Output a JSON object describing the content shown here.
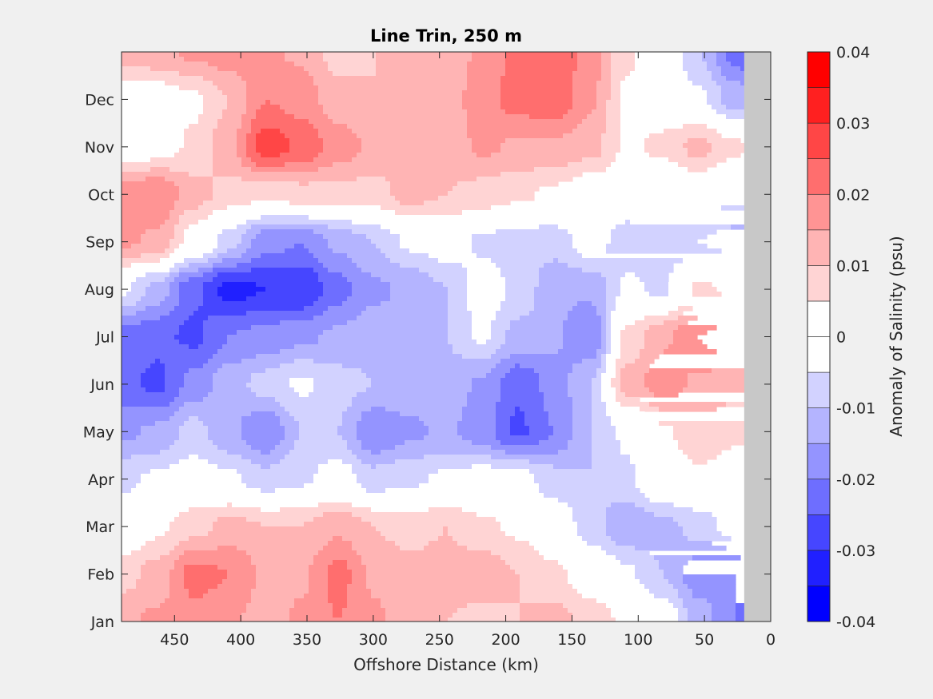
{
  "chart_data": {
    "type": "heatmap",
    "subtype": "filled-contour",
    "title": "Line Trin, 250 m",
    "xlabel": "Offshore Distance (km)",
    "ylabel": "",
    "colorbar_label": "Anomaly of Salinity (psu)",
    "xlim": [
      490,
      0
    ],
    "x_reversed": true,
    "x_ticks": [
      450,
      400,
      350,
      300,
      250,
      200,
      150,
      100,
      50,
      0
    ],
    "y_ticks": [
      "Jan",
      "Feb",
      "Mar",
      "Apr",
      "May",
      "Jun",
      "Jul",
      "Aug",
      "Sep",
      "Oct",
      "Nov",
      "Dec"
    ],
    "clim": [
      -0.04,
      0.04
    ],
    "contour_interval": 0.005,
    "colorbar_ticks": [
      "0.04",
      "0.03",
      "0.02",
      "0.01",
      "0",
      "-0.01",
      "-0.02",
      "-0.03",
      "-0.04"
    ],
    "colormap_levels": [
      "#0000ff",
      "#2020ff",
      "#4646ff",
      "#6e6eff",
      "#9494ff",
      "#b4b4ff",
      "#d2d2ff",
      "#ffffff",
      "#ffffff",
      "#ffd4d4",
      "#ffb4b4",
      "#ff9494",
      "#ff6e6e",
      "#ff4646",
      "#ff2020",
      "#ff0000"
    ],
    "zero_contour": "black",
    "land_mask_color": "#c8c8c8",
    "land_mask_from_km": 20,
    "grid": false,
    "z": [
      [
        0.014,
        0.016,
        0.018,
        0.016,
        0.012,
        0.016,
        0.02,
        0.016,
        0.012,
        0.01,
        0.008,
        0.01,
        0.012,
        0.008,
        0.004,
        0.0,
        -0.012,
        -0.02,
        -0.028
      ],
      [
        0.008,
        0.012,
        0.022,
        0.02,
        0.014,
        0.014,
        0.022,
        0.014,
        0.012,
        0.012,
        0.014,
        0.01,
        0.006,
        0.002,
        -0.004,
        -0.01,
        -0.018,
        -0.02,
        -0.02
      ],
      [
        -0.002,
        0.004,
        0.008,
        0.012,
        0.01,
        0.01,
        0.014,
        0.01,
        0.008,
        0.01,
        0.006,
        0.004,
        0.0,
        -0.008,
        -0.014,
        -0.012,
        -0.008,
        -0.002,
        0.0
      ],
      [
        -0.006,
        -0.004,
        -0.002,
        -0.004,
        -0.008,
        -0.006,
        -0.002,
        -0.008,
        -0.006,
        -0.004,
        -0.002,
        -0.002,
        -0.008,
        -0.01,
        -0.006,
        0.002,
        0.004,
        0.002,
        -0.002
      ],
      [
        -0.016,
        -0.014,
        -0.008,
        -0.014,
        -0.02,
        -0.01,
        -0.01,
        -0.02,
        -0.016,
        -0.014,
        -0.018,
        -0.026,
        -0.02,
        -0.01,
        -0.004,
        0.004,
        0.008,
        0.006,
        0.004
      ],
      [
        -0.024,
        -0.026,
        -0.018,
        -0.012,
        -0.008,
        -0.004,
        -0.008,
        -0.01,
        -0.012,
        -0.012,
        -0.016,
        -0.024,
        -0.018,
        -0.01,
        0.012,
        0.018,
        0.014,
        0.012,
        0.016
      ],
      [
        -0.022,
        -0.024,
        -0.026,
        -0.02,
        -0.018,
        -0.016,
        -0.014,
        -0.012,
        -0.014,
        -0.01,
        -0.004,
        -0.012,
        -0.014,
        -0.02,
        0.006,
        0.014,
        0.02,
        0.024,
        0.022
      ],
      [
        -0.004,
        -0.012,
        -0.024,
        -0.032,
        -0.03,
        -0.03,
        -0.022,
        -0.016,
        -0.014,
        -0.01,
        -0.002,
        -0.006,
        -0.014,
        -0.014,
        -0.004,
        -0.006,
        0.006,
        0.004,
        0.004
      ],
      [
        0.016,
        0.014,
        0.002,
        -0.008,
        -0.018,
        -0.02,
        -0.014,
        -0.01,
        -0.004,
        -0.002,
        -0.006,
        -0.008,
        -0.008,
        -0.002,
        -0.008,
        -0.006,
        -0.01,
        -0.012,
        -0.012
      ],
      [
        0.018,
        0.02,
        0.012,
        0.008,
        0.006,
        0.008,
        0.008,
        0.008,
        0.012,
        0.01,
        0.008,
        0.006,
        0.004,
        0.0,
        0.0,
        -0.002,
        -0.002,
        -0.004,
        -0.002
      ],
      [
        0.0,
        0.002,
        0.006,
        0.014,
        0.028,
        0.024,
        0.018,
        0.014,
        0.012,
        0.012,
        0.016,
        0.014,
        0.014,
        0.012,
        0.004,
        0.006,
        0.012,
        0.006,
        0.002
      ],
      [
        0.0,
        0.001,
        0.004,
        0.01,
        0.02,
        0.018,
        0.012,
        0.01,
        0.012,
        0.012,
        0.018,
        0.022,
        0.024,
        0.016,
        0.004,
        0.002,
        -0.004,
        -0.012,
        -0.02
      ],
      [
        0.012,
        0.014,
        0.016,
        0.018,
        0.016,
        0.014,
        0.008,
        0.01,
        0.01,
        0.012,
        0.016,
        0.022,
        0.024,
        0.018,
        0.006,
        0.0,
        -0.01,
        -0.022,
        -0.032
      ]
    ]
  }
}
